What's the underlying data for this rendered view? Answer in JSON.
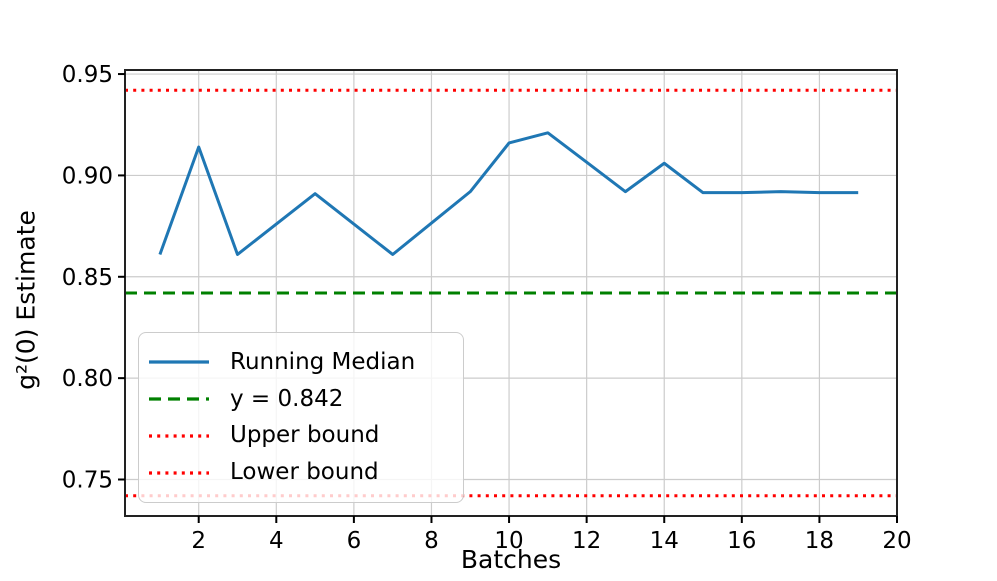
{
  "figure": {
    "background": "#ffffff"
  },
  "chart_data": {
    "type": "line",
    "title": "",
    "xlabel": "Batches",
    "ylabel": "g²(0) Estimate",
    "xlim": [
      0.1,
      20
    ],
    "ylim": [
      0.732,
      0.952
    ],
    "xticks": [
      2,
      4,
      6,
      8,
      10,
      12,
      14,
      16,
      18,
      20
    ],
    "yticks": [
      0.75,
      0.8,
      0.85,
      0.9,
      0.95
    ],
    "grid": true,
    "legend_position": "lower left",
    "series": [
      {
        "name": "Running Median",
        "kind": "line",
        "color": "#1f77b4",
        "linestyle": "solid",
        "x": [
          1,
          2,
          3,
          4,
          5,
          6,
          7,
          8,
          9,
          10,
          11,
          12,
          13,
          14,
          15,
          16,
          17,
          18,
          19
        ],
        "y": [
          0.861,
          0.914,
          0.861,
          0.876,
          0.891,
          0.876,
          0.861,
          0.8765,
          0.892,
          0.916,
          0.921,
          0.9065,
          0.892,
          0.906,
          0.8915,
          0.8915,
          0.892,
          0.8915,
          0.8915
        ]
      },
      {
        "name": "y = 0.842",
        "kind": "hline",
        "color": "#008000",
        "linestyle": "dashed",
        "y": 0.842
      },
      {
        "name": "Upper bound",
        "kind": "hline",
        "color": "#ff0000",
        "linestyle": "dotted",
        "y": 0.942
      },
      {
        "name": "Lower bound",
        "kind": "hline",
        "color": "#ff0000",
        "linestyle": "dotted",
        "y": 0.742
      }
    ],
    "grid_color": "#cccccc",
    "spine_color": "#222222",
    "tick_label_color": "#000000"
  }
}
